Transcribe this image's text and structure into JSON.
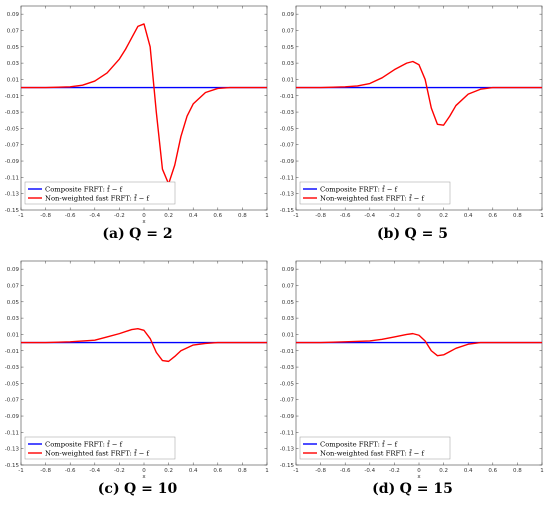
{
  "chart_data": [
    {
      "type": "line",
      "caption_label": "(a)",
      "caption_text": "Q = 2",
      "xlabel": "x",
      "ylabel": "",
      "xlim": [
        -1,
        1
      ],
      "ylim": [
        -0.15,
        0.1
      ],
      "xticks": [
        "-1",
        "-0.8",
        "-0.6",
        "-0.4",
        "-0.2",
        "0",
        "0.2",
        "0.4",
        "0.6",
        "0.8",
        "1"
      ],
      "yticks": [
        "0.09",
        "0.07",
        "0.05",
        "0.03",
        "0.01",
        "-0.01",
        "-0.03",
        "-0.05",
        "-0.07",
        "-0.09",
        "-0.11",
        "-0.13",
        "-0.15"
      ],
      "legend_position": "bottom-left",
      "series": [
        {
          "name": "Composite FRFT: f̂ − f",
          "color": "#0000ff",
          "x": [
            -1,
            -0.8,
            -0.6,
            -0.4,
            -0.2,
            0,
            0.2,
            0.4,
            0.6,
            0.8,
            1
          ],
          "y": [
            0,
            0,
            0,
            0,
            0,
            0,
            0,
            0,
            0,
            0,
            0
          ]
        },
        {
          "name": "Non-weighted fast FRFT: f̄ − f",
          "color": "#ff0000",
          "x": [
            -1,
            -0.8,
            -0.6,
            -0.5,
            -0.4,
            -0.3,
            -0.2,
            -0.15,
            -0.1,
            -0.05,
            0,
            0.05,
            0.1,
            0.15,
            0.2,
            0.25,
            0.3,
            0.35,
            0.4,
            0.5,
            0.6,
            0.7,
            0.8,
            1
          ],
          "y": [
            0,
            0,
            0.001,
            0.003,
            0.008,
            0.018,
            0.035,
            0.047,
            0.061,
            0.075,
            0.078,
            0.05,
            -0.03,
            -0.1,
            -0.118,
            -0.095,
            -0.06,
            -0.035,
            -0.02,
            -0.006,
            -0.001,
            0,
            0,
            0
          ]
        }
      ]
    },
    {
      "type": "line",
      "caption_label": "(b)",
      "caption_text": "Q = 5",
      "xlabel": "",
      "ylabel": "",
      "xlim": [
        -1,
        1
      ],
      "ylim": [
        -0.15,
        0.1
      ],
      "xticks": [
        "-1",
        "-0.8",
        "-0.6",
        "-0.4",
        "-0.2",
        "0",
        "0.2",
        "0.4",
        "0.6",
        "0.8",
        "1"
      ],
      "yticks": [
        "0.09",
        "0.07",
        "0.05",
        "0.03",
        "0.01",
        "-0.01",
        "-0.03",
        "-0.05",
        "-0.07",
        "-0.09",
        "-0.11",
        "-0.13",
        "-0.15"
      ],
      "legend_position": "bottom-left",
      "series": [
        {
          "name": "Composite FRFT: f̂ − f",
          "color": "#0000ff",
          "x": [
            -1,
            -0.8,
            -0.6,
            -0.4,
            -0.2,
            0,
            0.2,
            0.4,
            0.6,
            0.8,
            1
          ],
          "y": [
            0,
            0,
            0,
            0,
            0,
            0,
            0,
            0,
            0,
            0,
            0
          ]
        },
        {
          "name": "Non-weighted fast FRFT: f̄ − f",
          "color": "#ff0000",
          "x": [
            -1,
            -0.8,
            -0.6,
            -0.5,
            -0.4,
            -0.3,
            -0.2,
            -0.1,
            -0.05,
            0,
            0.05,
            0.1,
            0.15,
            0.2,
            0.25,
            0.3,
            0.4,
            0.5,
            0.6,
            0.8,
            1
          ],
          "y": [
            0,
            0,
            0.001,
            0.002,
            0.005,
            0.012,
            0.022,
            0.03,
            0.032,
            0.028,
            0.01,
            -0.025,
            -0.045,
            -0.046,
            -0.035,
            -0.022,
            -0.008,
            -0.002,
            0,
            0,
            0
          ]
        }
      ]
    },
    {
      "type": "line",
      "caption_label": "(c)",
      "caption_text": "Q = 10",
      "xlabel": "x",
      "ylabel": "",
      "xlim": [
        -1,
        1
      ],
      "ylim": [
        -0.15,
        0.1
      ],
      "xticks": [
        "-1",
        "-0.8",
        "-0.6",
        "-0.4",
        "-0.2",
        "0",
        "0.2",
        "0.4",
        "0.6",
        "0.8",
        "1"
      ],
      "yticks": [
        "0.09",
        "0.07",
        "0.05",
        "0.03",
        "0.01",
        "-0.01",
        "-0.03",
        "-0.05",
        "-0.07",
        "-0.09",
        "-0.11",
        "-0.13",
        "-0.15"
      ],
      "legend_position": "bottom-left",
      "series": [
        {
          "name": "Composite FRFT: f̂ − f",
          "color": "#0000ff",
          "x": [
            -1,
            -0.8,
            -0.6,
            -0.4,
            -0.2,
            0,
            0.2,
            0.4,
            0.6,
            0.8,
            1
          ],
          "y": [
            0,
            0,
            0,
            0,
            0,
            0,
            0,
            0,
            0,
            0,
            0
          ]
        },
        {
          "name": "Non-weighted fast FRFT: f̄ − f",
          "color": "#ff0000",
          "x": [
            -1,
            -0.8,
            -0.6,
            -0.4,
            -0.3,
            -0.2,
            -0.1,
            -0.05,
            0,
            0.05,
            0.1,
            0.15,
            0.2,
            0.25,
            0.3,
            0.4,
            0.5,
            0.6,
            0.8,
            1
          ],
          "y": [
            0,
            0,
            0.001,
            0.003,
            0.007,
            0.011,
            0.016,
            0.017,
            0.015,
            0.005,
            -0.012,
            -0.022,
            -0.023,
            -0.017,
            -0.01,
            -0.003,
            -0.001,
            0,
            0,
            0
          ]
        }
      ]
    },
    {
      "type": "line",
      "caption_label": "(d)",
      "caption_text": "Q = 15",
      "xlabel": "x",
      "ylabel": "",
      "xlim": [
        -1,
        1
      ],
      "ylim": [
        -0.15,
        0.1
      ],
      "xticks": [
        "-1",
        "-0.8",
        "-0.6",
        "-0.4",
        "-0.2",
        "0",
        "0.2",
        "0.4",
        "0.6",
        "0.8",
        "1"
      ],
      "yticks": [
        "0.09",
        "0.07",
        "0.05",
        "0.03",
        "0.01",
        "-0.01",
        "-0.03",
        "-0.05",
        "-0.07",
        "-0.09",
        "-0.11",
        "-0.13",
        "-0.15"
      ],
      "legend_position": "bottom-left",
      "series": [
        {
          "name": "Composite FRFT: f̂ − f",
          "color": "#0000ff",
          "x": [
            -1,
            -0.8,
            -0.6,
            -0.4,
            -0.2,
            0,
            0.2,
            0.4,
            0.6,
            0.8,
            1
          ],
          "y": [
            0,
            0,
            0,
            0,
            0,
            0,
            0,
            0,
            0,
            0,
            0
          ]
        },
        {
          "name": "Non-weighted fast FRFT: f̄ − f",
          "color": "#ff0000",
          "x": [
            -1,
            -0.8,
            -0.6,
            -0.4,
            -0.3,
            -0.2,
            -0.1,
            -0.05,
            0,
            0.05,
            0.1,
            0.15,
            0.2,
            0.25,
            0.3,
            0.4,
            0.5,
            0.6,
            0.8,
            1
          ],
          "y": [
            0,
            0,
            0.001,
            0.002,
            0.004,
            0.007,
            0.01,
            0.011,
            0.009,
            0.002,
            -0.01,
            -0.016,
            -0.015,
            -0.011,
            -0.007,
            -0.002,
            0,
            0,
            0,
            0
          ]
        }
      ]
    }
  ]
}
